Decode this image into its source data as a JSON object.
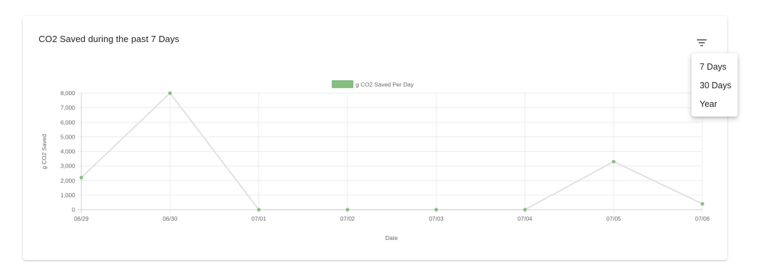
{
  "card": {
    "title": "CO2 Saved during the past 7 Days"
  },
  "filter_menu": {
    "icon": "filter-icon",
    "items": [
      "7 Days",
      "30 Days",
      "Year"
    ]
  },
  "colors": {
    "line": "#e0e0e0",
    "point": "#86c07f",
    "legend_fill": "#86c07f",
    "legend_stroke": "#6aa864",
    "grid": "#ececec",
    "tick_text": "#666666"
  },
  "chart_data": {
    "type": "line",
    "x": [
      "06/29",
      "06/30",
      "07/01",
      "07/02",
      "07/03",
      "07/04",
      "07/05",
      "07/06"
    ],
    "series": [
      {
        "name": "g CO2 Saved Per Day",
        "values": [
          2200,
          8000,
          0,
          0,
          0,
          0,
          3300,
          400
        ]
      }
    ],
    "xlabel": "Date",
    "ylabel": "g CO2 Saved",
    "ylim": [
      0,
      8000
    ],
    "yticks": [
      "0",
      "1,000",
      "2,000",
      "3,000",
      "4,000",
      "5,000",
      "6,000",
      "7,000",
      "8,000"
    ],
    "grid": true,
    "legend": "top-center"
  }
}
